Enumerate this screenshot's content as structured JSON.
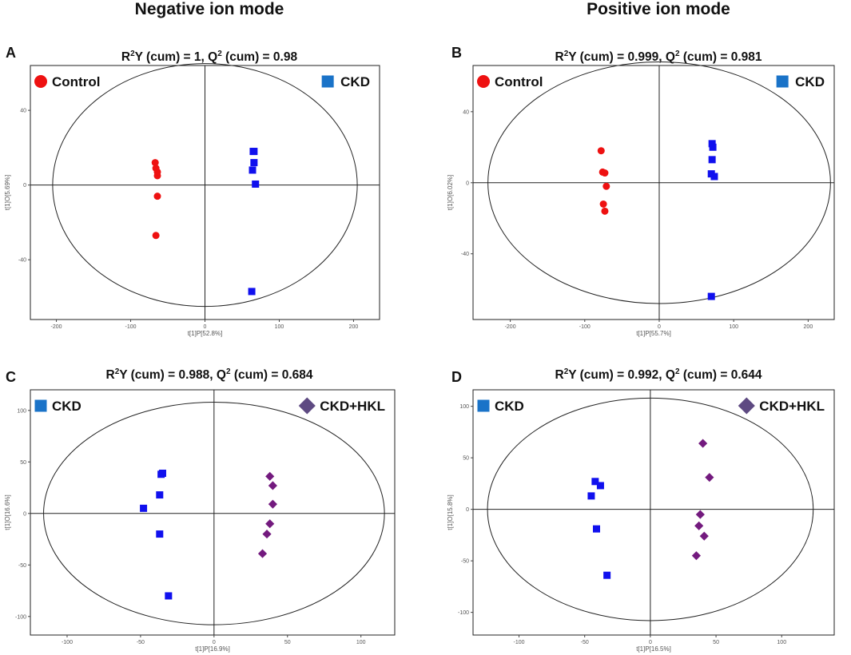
{
  "header": {
    "negative_title": "Negative ion mode",
    "positive_title": "Positive ion mode"
  },
  "colors": {
    "control": "#ee1111",
    "ckd_marker": "#1010ee",
    "ckd_legend": "#1a73c8",
    "hkl_marker": "#731a7e",
    "hkl_legend": "#5e4a82"
  },
  "chart_data": [
    {
      "panel": "A",
      "type": "scatter",
      "title": {
        "pre": "R",
        "sup1": "2",
        "mid": "Y (cum) = 1, Q",
        "sup2": "2",
        "post": " (cum) = 0.98"
      },
      "xlabel": "t[1]P[52.8%]",
      "ylabel": "t[1]O[5.69%]",
      "xlim": [
        -235,
        235
      ],
      "ylim": [
        -72,
        64
      ],
      "xticks": [
        -200,
        -100,
        0,
        100,
        200
      ],
      "yticks": [
        -40,
        0,
        40
      ],
      "ellipse": {
        "rx": 205,
        "ry": 65
      },
      "legend_position": "top",
      "series": [
        {
          "name": "Control",
          "marker": "circle",
          "color": "#ee1111",
          "legend_color": "#ee1111",
          "x": [
            -67,
            -66,
            -64,
            -64,
            -66,
            -64
          ],
          "y": [
            12,
            9,
            5,
            -6,
            -27,
            7
          ]
        },
        {
          "name": "CKD",
          "marker": "square",
          "color": "#1010ee",
          "legend_color": "#1a73c8",
          "x": [
            65,
            66,
            66,
            64,
            68,
            63
          ],
          "y": [
            18,
            18,
            12,
            8,
            0.5,
            -57
          ]
        }
      ]
    },
    {
      "panel": "B",
      "type": "scatter",
      "title": {
        "pre": "R",
        "sup1": "2",
        "mid": "Y (cum) = 0.999, Q",
        "sup2": "2",
        "post": " (cum) = 0.981"
      },
      "xlabel": "t[1]P[55.7%]",
      "ylabel": "t[1]O[6.02%]",
      "xlim": [
        -250,
        235
      ],
      "ylim": [
        -77,
        66
      ],
      "xticks": [
        -200,
        -100,
        0,
        100,
        200
      ],
      "yticks": [
        -40,
        0,
        40
      ],
      "ellipse": {
        "rx": 230,
        "ry": 68
      },
      "legend_position": "top",
      "series": [
        {
          "name": "Control",
          "marker": "circle",
          "color": "#ee1111",
          "legend_color": "#ee1111",
          "x": [
            -78,
            -76,
            -73,
            -71,
            -75,
            -73
          ],
          "y": [
            18,
            6,
            5.5,
            -2,
            -12,
            -16
          ]
        },
        {
          "name": "CKD",
          "marker": "square",
          "color": "#1010ee",
          "legend_color": "#1a73c8",
          "x": [
            71,
            72,
            71,
            70,
            74,
            70
          ],
          "y": [
            22,
            20,
            13,
            5,
            3.5,
            -64
          ]
        }
      ]
    },
    {
      "panel": "C",
      "type": "scatter",
      "title": {
        "pre": "R",
        "sup1": "2",
        "mid": "Y (cum) = 0.988, Q",
        "sup2": "2",
        "post": " (cum) = 0.684"
      },
      "xlabel": "t[1]P[16.9%]",
      "ylabel": "t[1]O[16.6%]",
      "xlim": [
        -125,
        123
      ],
      "ylim": [
        -118,
        120
      ],
      "xticks": [
        -100,
        -50,
        0,
        50,
        100
      ],
      "yticks": [
        -100,
        -50,
        0,
        50,
        100
      ],
      "ellipse": {
        "rx": 116,
        "ry": 108
      },
      "legend_position": "top",
      "series": [
        {
          "name": "CKD",
          "marker": "square",
          "color": "#1010ee",
          "legend_color": "#1a73c8",
          "x": [
            -36,
            -35,
            -37,
            -48,
            -37,
            -31
          ],
          "y": [
            38,
            39,
            18,
            5,
            -20,
            -80
          ]
        },
        {
          "name": "CKD+HKL",
          "marker": "diamond",
          "color": "#731a7e",
          "legend_color": "#5e4a82",
          "x": [
            38,
            40,
            40,
            38,
            36,
            33
          ],
          "y": [
            36,
            27,
            9,
            -10,
            -20,
            -39
          ]
        }
      ]
    },
    {
      "panel": "D",
      "type": "scatter",
      "title": {
        "pre": "R",
        "sup1": "2",
        "mid": "Y (cum) = 0.992, Q",
        "sup2": "2",
        "post": " (cum) = 0.644"
      },
      "xlabel": "t[1]P[16.5%]",
      "ylabel": "t[1]O[15.8%]",
      "xlim": [
        -135,
        140
      ],
      "ylim": [
        -122,
        116
      ],
      "xticks": [
        -100,
        -50,
        0,
        50,
        100
      ],
      "yticks": [
        -100,
        -50,
        0,
        50,
        100
      ],
      "ellipse": {
        "rx": 124,
        "ry": 108
      },
      "legend_position": "top",
      "series": [
        {
          "name": "CKD",
          "marker": "square",
          "color": "#1010ee",
          "legend_color": "#1a73c8",
          "x": [
            -42,
            -38,
            -45,
            -41,
            -33
          ],
          "y": [
            27,
            23,
            13,
            -19,
            -64
          ]
        },
        {
          "name": "CKD+HKL",
          "marker": "diamond",
          "color": "#731a7e",
          "legend_color": "#5e4a82",
          "x": [
            40,
            45,
            38,
            37,
            41,
            35
          ],
          "y": [
            64,
            31,
            -5,
            -16,
            -26,
            -45
          ]
        }
      ]
    }
  ]
}
